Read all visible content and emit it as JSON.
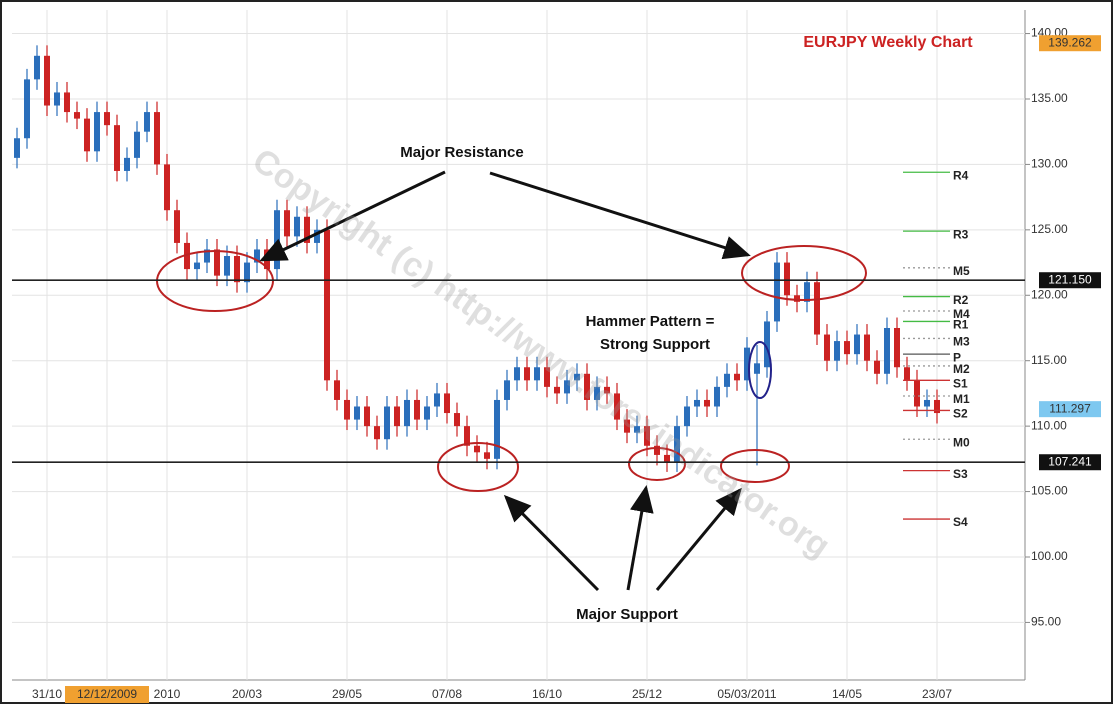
{
  "chart_data": {
    "type": "candlestick",
    "title": "EURJPY Weekly Chart",
    "watermark": "Copyright (c) http://www.forexindicator.org",
    "annotations": [
      "Major Resistance",
      "Hammer Pattern =",
      "Strong Support",
      "Major Support"
    ],
    "up_color": "#2a6ebb",
    "down_color": "#cc2222",
    "grid": true,
    "ylim": [
      90.6,
      141.8
    ],
    "yticks": [
      {
        "value": 95,
        "label": "95.00"
      },
      {
        "value": 100,
        "label": "100.00"
      },
      {
        "value": 105,
        "label": "105.00"
      },
      {
        "value": 110,
        "label": "110.00"
      },
      {
        "value": 115,
        "label": "115.00"
      },
      {
        "value": 120,
        "label": "120.00"
      },
      {
        "value": 125,
        "label": "125.00"
      },
      {
        "value": 130,
        "label": "130.00"
      },
      {
        "value": 135,
        "label": "135.00"
      },
      {
        "value": 140,
        "label": "140.00"
      }
    ],
    "categories": [
      null,
      null,
      null,
      "31/10",
      null,
      null,
      null,
      null,
      null,
      "12/12/2009",
      null,
      null,
      null,
      null,
      null,
      "2010",
      null,
      null,
      null,
      null,
      null,
      null,
      null,
      "20/03",
      null,
      null,
      null,
      null,
      null,
      null,
      null,
      null,
      null,
      "29/05",
      null,
      null,
      null,
      null,
      null,
      null,
      null,
      null,
      null,
      "07/08",
      null,
      null,
      null,
      null,
      null,
      null,
      null,
      null,
      null,
      "16/10",
      null,
      null,
      null,
      null,
      null,
      null,
      null,
      null,
      null,
      "25/12",
      null,
      null,
      null,
      null,
      null,
      null,
      null,
      null,
      null,
      "05/03/2011",
      null,
      null,
      null,
      null,
      null,
      null,
      null,
      null,
      null,
      "14/05",
      null,
      null,
      null,
      null,
      null,
      null,
      null,
      null,
      "23/07"
    ],
    "highlighted_category": 9,
    "open": [
      130.5,
      132.0,
      136.5,
      138.3,
      134.5,
      135.5,
      134.0,
      133.5,
      131.0,
      134.0,
      133.0,
      129.5,
      130.5,
      132.5,
      134.0,
      130.0,
      126.5,
      124.0,
      122.0,
      122.5,
      123.5,
      121.5,
      123.0,
      121.0,
      122.5,
      123.5,
      122.0,
      126.5,
      124.5,
      126.0,
      124.0,
      125.0,
      113.5,
      112.0,
      110.5,
      111.5,
      110.0,
      109.0,
      111.5,
      110.0,
      112.0,
      110.5,
      111.5,
      112.5,
      111.0,
      110.0,
      108.5,
      108.0,
      107.5,
      112.0,
      113.5,
      114.5,
      113.5,
      114.5,
      113.0,
      112.5,
      113.5,
      114.0,
      112.0,
      113.0,
      112.5,
      110.5,
      109.5,
      110.0,
      108.5,
      107.8,
      107.3,
      110.0,
      111.5,
      112.0,
      111.5,
      113.0,
      114.0,
      113.5,
      114.0,
      114.5,
      118.0,
      122.5,
      120.0,
      119.5,
      121.0,
      117.0,
      115.0,
      116.5,
      115.5,
      117.0,
      115.0,
      114.0,
      117.5,
      114.5,
      113.5,
      111.5,
      112.0
    ],
    "high": [
      132.8,
      137.3,
      139.1,
      139.1,
      136.3,
      136.3,
      134.8,
      134.3,
      134.8,
      134.8,
      133.8,
      131.3,
      133.3,
      134.8,
      134.8,
      130.8,
      127.3,
      124.8,
      123.3,
      124.3,
      124.3,
      123.8,
      123.8,
      123.3,
      124.3,
      124.3,
      127.3,
      127.3,
      126.8,
      126.8,
      125.8,
      125.8,
      114.3,
      112.8,
      112.3,
      112.3,
      110.8,
      112.3,
      112.3,
      112.8,
      112.8,
      112.3,
      113.3,
      113.3,
      111.8,
      110.8,
      109.3,
      108.8,
      112.8,
      114.3,
      115.3,
      115.3,
      115.3,
      115.3,
      113.8,
      114.3,
      114.8,
      114.8,
      113.8,
      113.8,
      113.3,
      111.3,
      110.8,
      110.8,
      109.3,
      108.6,
      110.8,
      112.3,
      112.8,
      112.8,
      113.8,
      114.8,
      114.8,
      116.8,
      116.2,
      118.8,
      123.3,
      123.3,
      120.8,
      121.8,
      121.8,
      117.8,
      117.3,
      117.3,
      117.8,
      117.8,
      115.8,
      118.3,
      118.3,
      115.3,
      114.3,
      112.8,
      112.8
    ],
    "low": [
      129.7,
      131.2,
      135.7,
      133.7,
      133.7,
      133.2,
      132.7,
      130.2,
      130.2,
      132.2,
      128.7,
      128.7,
      129.7,
      131.7,
      129.2,
      125.7,
      123.2,
      121.2,
      121.2,
      121.7,
      120.7,
      120.7,
      120.2,
      120.2,
      121.7,
      121.2,
      121.2,
      123.7,
      123.7,
      123.2,
      123.2,
      112.7,
      111.2,
      109.7,
      109.7,
      109.2,
      108.2,
      108.2,
      109.2,
      109.2,
      109.7,
      109.7,
      110.7,
      110.2,
      109.2,
      107.7,
      107.2,
      106.7,
      106.7,
      111.2,
      112.7,
      112.7,
      112.7,
      112.2,
      111.7,
      111.7,
      112.7,
      111.2,
      111.2,
      111.7,
      109.7,
      108.7,
      108.7,
      107.7,
      107.0,
      106.5,
      106.5,
      109.2,
      110.7,
      110.7,
      110.7,
      112.2,
      112.7,
      112.7,
      107.0,
      113.7,
      117.2,
      119.2,
      118.7,
      118.7,
      116.2,
      114.2,
      114.2,
      114.7,
      114.7,
      114.2,
      113.2,
      113.2,
      113.7,
      112.7,
      110.7,
      110.7,
      110.2
    ],
    "close": [
      132.0,
      136.5,
      138.3,
      134.5,
      135.5,
      134.0,
      133.5,
      131.0,
      134.0,
      133.0,
      129.5,
      130.5,
      132.5,
      134.0,
      130.0,
      126.5,
      124.0,
      122.0,
      122.5,
      123.5,
      121.5,
      123.0,
      121.0,
      122.5,
      123.5,
      122.0,
      126.5,
      124.5,
      126.0,
      124.0,
      125.0,
      113.5,
      112.0,
      110.5,
      111.5,
      110.0,
      109.0,
      111.5,
      110.0,
      112.0,
      110.5,
      111.5,
      112.5,
      111.0,
      110.0,
      108.5,
      108.0,
      107.5,
      112.0,
      113.5,
      114.5,
      113.5,
      114.5,
      113.0,
      112.5,
      113.5,
      114.0,
      112.0,
      113.0,
      112.5,
      110.5,
      109.5,
      110.0,
      108.5,
      107.8,
      107.3,
      110.0,
      111.5,
      112.0,
      111.5,
      113.0,
      114.0,
      113.5,
      116.0,
      114.8,
      118.0,
      122.5,
      120.0,
      119.5,
      121.0,
      117.0,
      115.0,
      116.5,
      115.5,
      117.0,
      115.0,
      114.0,
      117.5,
      114.5,
      113.5,
      111.5,
      112.0,
      111.0
    ],
    "levels": [
      {
        "value": 121.15,
        "label": "121.150"
      },
      {
        "value": 107.241,
        "label": "107.241"
      }
    ],
    "price_tags": [
      {
        "value": 139.262,
        "label": "139.262",
        "color": "#f0a030"
      },
      {
        "value": 111.297,
        "label": "111.297",
        "color": "#7ec8f0"
      }
    ],
    "pivots": [
      {
        "label": "R4",
        "value": 129.4,
        "color": "#44bb44"
      },
      {
        "label": "R3",
        "value": 124.9,
        "color": "#44bb44"
      },
      {
        "label": "M5",
        "value": 122.1,
        "color": "#999999"
      },
      {
        "label": "R2",
        "value": 119.9,
        "color": "#44bb44"
      },
      {
        "label": "M4",
        "value": 118.8,
        "color": "#999999"
      },
      {
        "label": "R1",
        "value": 118.0,
        "color": "#44bb44"
      },
      {
        "label": "M3",
        "value": 116.7,
        "color": "#999999"
      },
      {
        "label": "P",
        "value": 115.5,
        "color": "#555555"
      },
      {
        "label": "M2",
        "value": 114.6,
        "color": "#999999"
      },
      {
        "label": "S1",
        "value": 113.5,
        "color": "#cc3333"
      },
      {
        "label": "M1",
        "value": 112.3,
        "color": "#999999"
      },
      {
        "label": "S2",
        "value": 111.2,
        "color": "#cc3333"
      },
      {
        "label": "M0",
        "value": 109.0,
        "color": "#999999"
      },
      {
        "label": "S3",
        "value": 106.6,
        "color": "#cc3333"
      },
      {
        "label": "S4",
        "value": 102.9,
        "color": "#cc3333"
      }
    ]
  }
}
